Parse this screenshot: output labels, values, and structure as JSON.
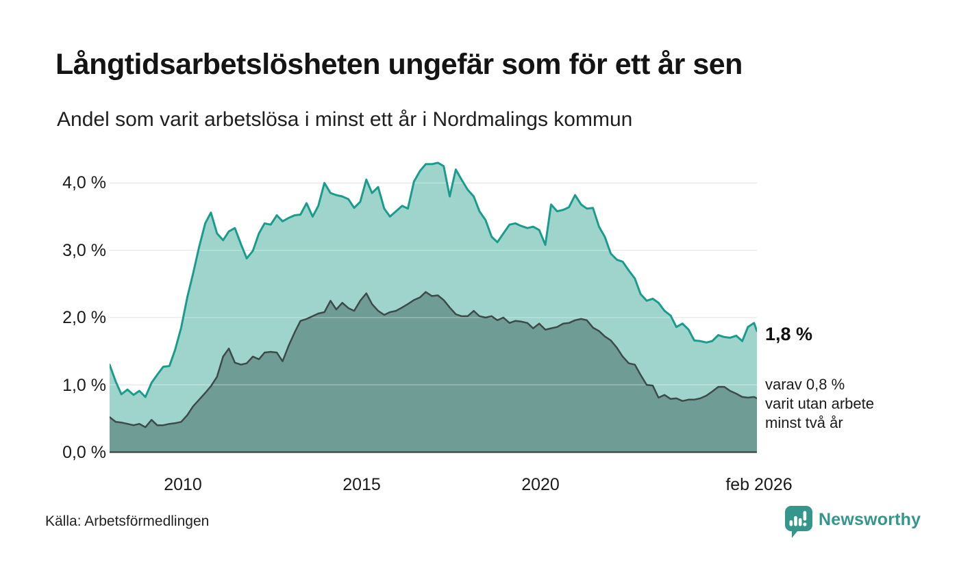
{
  "header": {
    "title": "Långtidsarbetslösheten ungefär som för ett år sen",
    "subtitle": "Andel som varit arbetslösa i minst ett år i Nordmalings kommun"
  },
  "chart_data": {
    "type": "area",
    "title": "Långtidsarbetslösheten ungefär som för ett år sen",
    "subtitle": "Andel som varit arbetslösa i minst ett år i Nordmalings kommun",
    "xlabel": "",
    "ylabel": "",
    "ylim": [
      0,
      4.5
    ],
    "grid": true,
    "legend_position": "none",
    "x_range_note": "monthly-style series from 2008 to feb 2026, decimal years",
    "x": [
      2008,
      2008.17,
      2008.33,
      2008.5,
      2008.67,
      2008.83,
      2009,
      2009.17,
      2009.33,
      2009.5,
      2009.67,
      2009.83,
      2010,
      2010.17,
      2010.33,
      2010.5,
      2010.67,
      2010.83,
      2011,
      2011.17,
      2011.33,
      2011.5,
      2011.67,
      2011.83,
      2012,
      2012.17,
      2012.33,
      2012.5,
      2012.67,
      2012.83,
      2013,
      2013.17,
      2013.33,
      2013.5,
      2013.67,
      2013.83,
      2014,
      2014.17,
      2014.33,
      2014.5,
      2014.67,
      2014.83,
      2015,
      2015.17,
      2015.33,
      2015.5,
      2015.67,
      2015.83,
      2016,
      2016.17,
      2016.33,
      2016.5,
      2016.67,
      2016.83,
      2017,
      2017.17,
      2017.33,
      2017.5,
      2017.67,
      2017.83,
      2018,
      2018.17,
      2018.33,
      2018.5,
      2018.67,
      2018.83,
      2019,
      2019.17,
      2019.33,
      2019.5,
      2019.67,
      2019.83,
      2020,
      2020.17,
      2020.33,
      2020.5,
      2020.67,
      2020.83,
      2021,
      2021.17,
      2021.33,
      2021.5,
      2021.67,
      2021.83,
      2022,
      2022.17,
      2022.33,
      2022.5,
      2022.67,
      2022.83,
      2023,
      2023.17,
      2023.33,
      2023.5,
      2023.67,
      2023.83,
      2024,
      2024.17,
      2024.33,
      2024.5,
      2024.67,
      2024.83,
      2025,
      2025.17,
      2025.33,
      2025.5,
      2025.67,
      2025.83,
      2026,
      2026.08
    ],
    "series": [
      {
        "name": "Andel som varit arbetslösa i minst ett år",
        "color_fill": "#9ed4cc",
        "color_line": "#1a9c8c",
        "line_width": 3,
        "end_value_label": "1,8 %",
        "values": [
          1.3,
          1.05,
          0.86,
          0.93,
          0.85,
          0.91,
          0.82,
          1.03,
          1.15,
          1.27,
          1.28,
          1.52,
          1.85,
          2.3,
          2.65,
          3.05,
          3.4,
          3.56,
          3.25,
          3.15,
          3.28,
          3.33,
          3.09,
          2.88,
          2.99,
          3.25,
          3.4,
          3.38,
          3.52,
          3.43,
          3.48,
          3.52,
          3.53,
          3.7,
          3.5,
          3.66,
          4.0,
          3.85,
          3.82,
          3.8,
          3.76,
          3.63,
          3.72,
          4.05,
          3.85,
          3.94,
          3.62,
          3.5,
          3.58,
          3.66,
          3.62,
          4.02,
          4.18,
          4.28,
          4.28,
          4.3,
          4.25,
          3.8,
          4.2,
          4.05,
          3.9,
          3.8,
          3.58,
          3.45,
          3.2,
          3.12,
          3.25,
          3.38,
          3.4,
          3.36,
          3.33,
          3.35,
          3.3,
          3.08,
          3.68,
          3.58,
          3.6,
          3.64,
          3.82,
          3.68,
          3.62,
          3.63,
          3.35,
          3.2,
          2.95,
          2.86,
          2.83,
          2.7,
          2.58,
          2.35,
          2.25,
          2.28,
          2.22,
          2.1,
          2.03,
          1.86,
          1.91,
          1.82,
          1.66,
          1.65,
          1.63,
          1.65,
          1.74,
          1.71,
          1.7,
          1.73,
          1.65,
          1.86,
          1.92,
          1.8
        ]
      },
      {
        "name": "varav varit utan arbete minst två år",
        "color_fill": "#709c96",
        "color_line": "#3c4b47",
        "line_width": 2.5,
        "end_value_label": "0,8 %",
        "values": [
          0.52,
          0.45,
          0.44,
          0.42,
          0.4,
          0.42,
          0.37,
          0.48,
          0.4,
          0.4,
          0.42,
          0.43,
          0.45,
          0.55,
          0.68,
          0.78,
          0.88,
          0.98,
          1.12,
          1.42,
          1.54,
          1.33,
          1.3,
          1.32,
          1.42,
          1.38,
          1.48,
          1.49,
          1.48,
          1.35,
          1.58,
          1.78,
          1.95,
          1.98,
          2.02,
          2.06,
          2.08,
          2.25,
          2.12,
          2.22,
          2.14,
          2.1,
          2.25,
          2.36,
          2.2,
          2.1,
          2.04,
          2.08,
          2.1,
          2.15,
          2.2,
          2.26,
          2.3,
          2.38,
          2.32,
          2.33,
          2.26,
          2.15,
          2.05,
          2.02,
          2.02,
          2.1,
          2.02,
          2.0,
          2.02,
          1.96,
          2.0,
          1.92,
          1.95,
          1.94,
          1.92,
          1.84,
          1.91,
          1.82,
          1.84,
          1.86,
          1.91,
          1.92,
          1.96,
          1.98,
          1.96,
          1.85,
          1.8,
          1.72,
          1.66,
          1.55,
          1.42,
          1.32,
          1.3,
          1.15,
          1.0,
          0.99,
          0.81,
          0.85,
          0.79,
          0.8,
          0.76,
          0.78,
          0.78,
          0.8,
          0.84,
          0.9,
          0.97,
          0.97,
          0.91,
          0.87,
          0.82,
          0.81,
          0.82,
          0.8
        ]
      }
    ],
    "yticks": [
      "4,0 %",
      "3,0 %",
      "2,0 %",
      "1,0 %",
      "0,0 %"
    ],
    "ytick_values": [
      4,
      3,
      2,
      1,
      0
    ],
    "xticks": [
      "2010",
      "2015",
      "2020",
      "feb 2026"
    ],
    "xtick_values": [
      2010,
      2015,
      2020,
      2026.08
    ],
    "annotations": {
      "end_value": "1,8 %",
      "sub_line1": "varav 0,8 %",
      "sub_line2": "varit utan arbete",
      "sub_line3": "minst två år"
    }
  },
  "footer": {
    "source": "Källa: Arbetsförmedlingen",
    "brand": "Newsworthy"
  },
  "colors": {
    "grid": "#dcdcdc",
    "grid_overlay": "rgba(255,255,255,0.35)",
    "axis_line": "#3f4e4a",
    "logo_teal": "#35968b",
    "title_color": "#141414"
  }
}
